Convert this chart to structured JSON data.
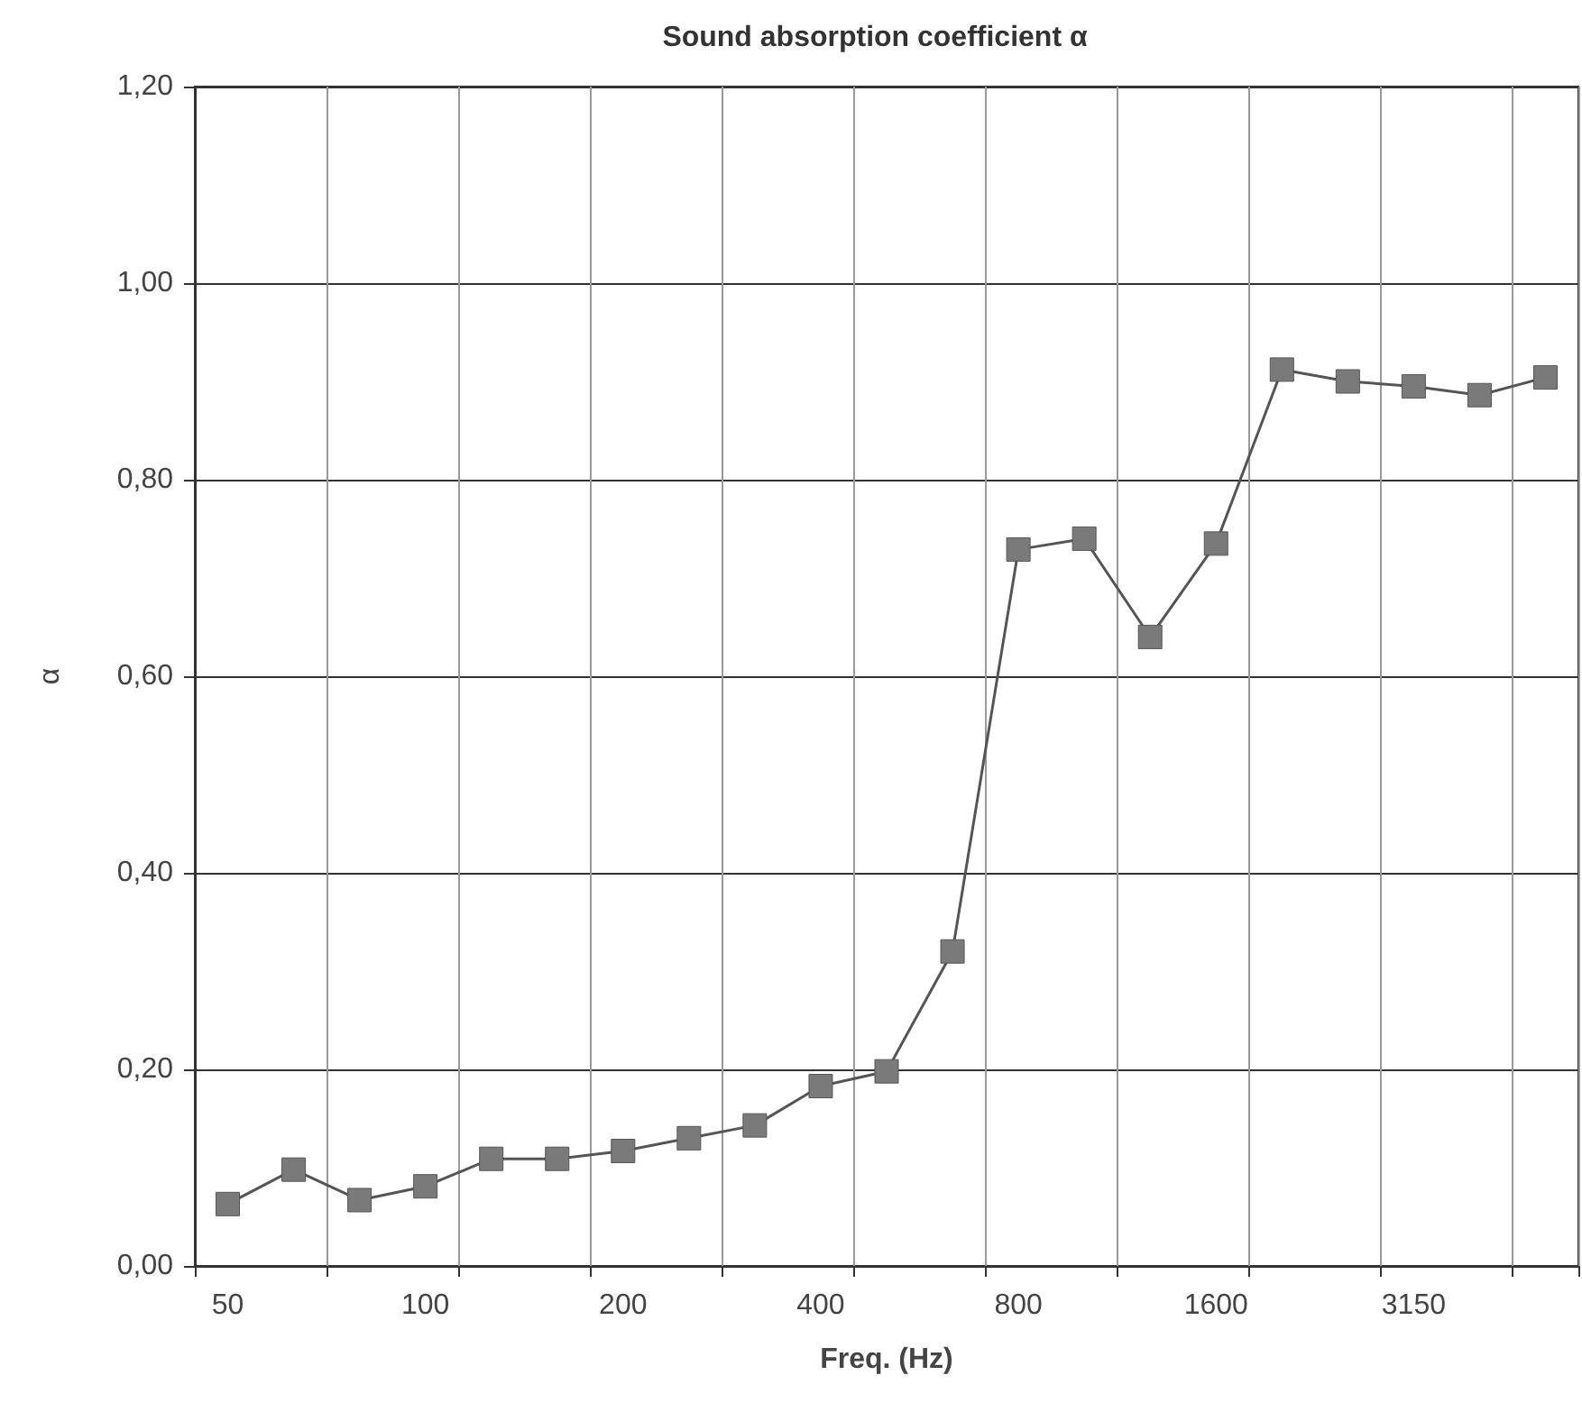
{
  "chart_data": {
    "type": "line",
    "title": "Sound absorption coefficient α",
    "xlabel": "Freq. (Hz)",
    "ylabel": "α",
    "categories": [
      "50",
      null,
      null,
      "100",
      null,
      null,
      "200",
      null,
      null,
      "400",
      null,
      null,
      "800",
      null,
      null,
      "1600",
      null,
      null,
      "3150",
      null,
      null
    ],
    "series": [
      {
        "color": "#7a7a7a",
        "values": [
          0.063,
          0.098,
          0.067,
          0.081,
          0.109,
          0.109,
          0.117,
          0.13,
          0.143,
          0.183,
          0.198,
          0.32,
          0.729,
          0.74,
          0.64,
          0.735,
          0.912,
          0.9,
          0.895,
          0.886,
          0.904
        ]
      }
    ],
    "ylim": [
      0,
      1.2
    ],
    "yticks": [
      {
        "value": 0,
        "label": "0,00"
      },
      {
        "value": 0.2,
        "label": "0,20"
      },
      {
        "value": 0.4,
        "label": "0,40"
      },
      {
        "value": 0.6,
        "label": "0,60"
      },
      {
        "value": 0.8,
        "label": "0,80"
      },
      {
        "value": 1,
        "label": "1,00"
      },
      {
        "value": 1.2,
        "label": "1,20"
      }
    ],
    "grid": true,
    "marker": "square",
    "line_style": "solid"
  }
}
